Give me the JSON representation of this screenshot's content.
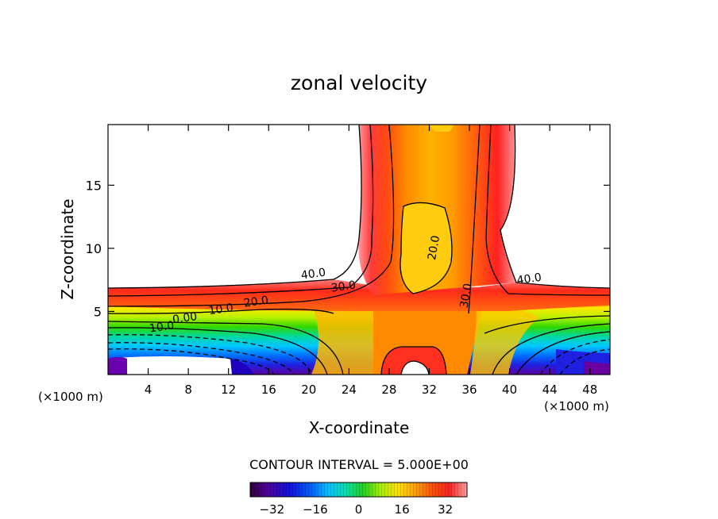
{
  "chart_data": {
    "type": "contour",
    "title": "zonal velocity",
    "xlabel": "X-coordinate",
    "ylabel": "Z-coordinate",
    "x_units_left": "(×1000 m)",
    "x_units_right": "(×1000 m)",
    "xlim": [
      0,
      50
    ],
    "ylim": [
      0,
      19.8
    ],
    "xticks": [
      4,
      8,
      12,
      16,
      20,
      24,
      28,
      32,
      36,
      40,
      44,
      48
    ],
    "yticks": [
      5,
      10,
      15
    ],
    "contour_interval_text": "CONTOUR INTERVAL = 5.000E+00",
    "colorbar": {
      "range": [
        -40,
        40
      ],
      "ticks": [
        -32,
        -16,
        0,
        16,
        32
      ]
    },
    "contour_labels": [
      {
        "text": "40.0",
        "x": 20.5,
        "y": 7.7
      },
      {
        "text": "30.0",
        "x": 23.5,
        "y": 6.7
      },
      {
        "text": "20.0",
        "x": 14.8,
        "y": 5.5
      },
      {
        "text": "10.0",
        "x": 11.3,
        "y": 4.9
      },
      {
        "text": "0.00",
        "x": 7.7,
        "y": 4.2
      },
      {
        "text": "10.0",
        "x": 5.4,
        "y": 3.5
      },
      {
        "text": "20.0",
        "x": 32.8,
        "y": 10.0
      },
      {
        "text": "30.0",
        "x": 36.0,
        "y": 6.2
      },
      {
        "text": "40.0",
        "x": 42.0,
        "y": 7.3
      }
    ]
  }
}
